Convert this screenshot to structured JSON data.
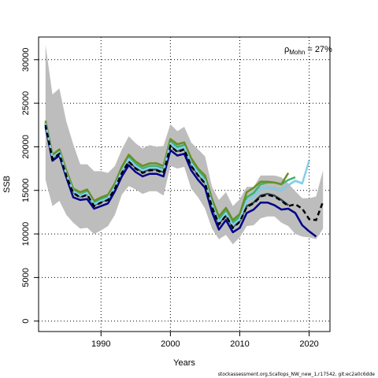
{
  "chart_data": {
    "type": "line",
    "xlabel": "Years",
    "ylabel": "SSB",
    "annotation": {
      "rho_symbol": "ρ",
      "rho_sub": "Mohn",
      "rho_value": " = 27%"
    },
    "footer": "stockassessment.org,Scallops_NW_new_1,r17542, git:ec2a0c6dde",
    "xlim": [
      1981,
      2023
    ],
    "ylim": [
      -1200,
      32600
    ],
    "xticks": [
      1990,
      2000,
      2010,
      2020
    ],
    "yticks": [
      0,
      5000,
      10000,
      15000,
      20000,
      25000,
      30000
    ],
    "grid": true,
    "colors": {
      "band": "#bdbdbd",
      "main": "#000000",
      "peels": [
        "#00008b",
        "#2f4f4f",
        "#3cb371",
        "#6b8e23",
        "#008b8b",
        "#87ceeb"
      ]
    },
    "band": {
      "x": [
        1982,
        1983,
        1984,
        1985,
        1986,
        1987,
        1988,
        1989,
        1990,
        1991,
        1992,
        1993,
        1994,
        1995,
        1996,
        1997,
        1998,
        1999,
        2000,
        2001,
        2002,
        2003,
        2004,
        2005,
        2006,
        2007,
        2008,
        2009,
        2010,
        2011,
        2012,
        2013,
        2014,
        2015,
        2016,
        2017,
        2018,
        2019,
        2020,
        2021,
        2022
      ],
      "upper": [
        31700,
        26000,
        26700,
        22900,
        20300,
        18000,
        18000,
        17200,
        17200,
        17000,
        17800,
        19700,
        21200,
        20400,
        19800,
        20200,
        20000,
        20100,
        22600,
        21800,
        22300,
        20500,
        19700,
        18900,
        15400,
        13900,
        14800,
        13200,
        14000,
        15400,
        15400,
        16700,
        16700,
        16700,
        16500,
        15800,
        14900,
        14100,
        14100,
        14300,
        17300
      ],
      "lower": [
        16200,
        13200,
        13800,
        12200,
        11300,
        10600,
        10700,
        10000,
        10400,
        10900,
        12200,
        14500,
        15500,
        15100,
        14600,
        14900,
        14900,
        14400,
        17800,
        17500,
        17700,
        15200,
        14200,
        12900,
        10600,
        9400,
        9900,
        8800,
        9600,
        10900,
        11000,
        11800,
        12000,
        12000,
        11300,
        10900,
        10000,
        9700,
        9600,
        9400,
        10600
      ]
    },
    "series": [
      {
        "role": "main",
        "x": [
          1982,
          1983,
          1984,
          1985,
          1986,
          1987,
          1988,
          1989,
          1990,
          1991,
          1992,
          1993,
          1994,
          1995,
          1996,
          1997,
          1998,
          1999,
          2000,
          2001,
          2002,
          2003,
          2004,
          2005,
          2006,
          2007,
          2008,
          2009,
          2010,
          2011,
          2012,
          2013,
          2014,
          2015,
          2016,
          2017,
          2018,
          2019,
          2020,
          2021,
          2022
        ],
        "y": [
          22500,
          18600,
          19200,
          16700,
          14700,
          14200,
          14500,
          13200,
          13600,
          13900,
          15200,
          17000,
          18300,
          17500,
          17000,
          17300,
          17300,
          17000,
          20100,
          19400,
          19700,
          17800,
          16700,
          15800,
          13100,
          11100,
          12100,
          10700,
          11400,
          13100,
          13500,
          14300,
          14500,
          14300,
          13800,
          13200,
          13400,
          12900,
          11700,
          11600,
          13700
        ]
      },
      {
        "role": "peel",
        "x": [
          1982,
          1983,
          1984,
          1985,
          1986,
          1987,
          1988,
          1989,
          1990,
          1991,
          1992,
          1993,
          1994,
          1995,
          1996,
          1997,
          1998,
          1999,
          2000,
          2001,
          2002,
          2003,
          2004,
          2005,
          2006,
          2007,
          2008,
          2009,
          2010,
          2011,
          2012,
          2013,
          2014,
          2015,
          2016,
          2017,
          2018,
          2019,
          2020,
          2021
        ],
        "y": [
          22300,
          18400,
          19000,
          16500,
          14200,
          13900,
          14000,
          12900,
          13200,
          13500,
          14900,
          16600,
          17900,
          17100,
          16600,
          16900,
          16900,
          16600,
          19600,
          19000,
          19200,
          17300,
          16200,
          15300,
          12500,
          10500,
          11600,
          10200,
          10700,
          12400,
          12800,
          13600,
          13600,
          13300,
          12800,
          12900,
          12400,
          11000,
          10300,
          9700
        ]
      },
      {
        "role": "peel",
        "x": [
          1982,
          1983,
          1984,
          1985,
          1986,
          1987,
          1988,
          1989,
          1990,
          1991,
          1992,
          1993,
          1994,
          1995,
          1996,
          1997,
          1998,
          1999,
          2000,
          2001,
          2002,
          2003,
          2004,
          2005,
          2006,
          2007,
          2008,
          2009,
          2010,
          2011,
          2012,
          2013,
          2014,
          2015,
          2016,
          2017
        ],
        "y": [
          22600,
          18700,
          19300,
          16800,
          14800,
          14300,
          14600,
          13300,
          13700,
          14000,
          15300,
          17100,
          18400,
          17600,
          17100,
          17400,
          17400,
          17100,
          20200,
          19500,
          19800,
          17900,
          16800,
          15900,
          13200,
          11200,
          12200,
          10800,
          11500,
          13200,
          13600,
          14400,
          14600,
          14400,
          13900,
          13300
        ]
      },
      {
        "role": "peel",
        "x": [
          1982,
          1983,
          1984,
          1985,
          1986,
          1987,
          1988,
          1989,
          1990,
          1991,
          1992,
          1993,
          1994,
          1995,
          1996,
          1997,
          1998,
          1999,
          2000,
          2001,
          2002,
          2003,
          2004,
          2005,
          2006,
          2007,
          2008,
          2009,
          2010,
          2011,
          2012,
          2013,
          2014,
          2015,
          2016,
          2017,
          2018
        ],
        "y": [
          22800,
          18900,
          19500,
          17100,
          15000,
          14500,
          14900,
          13600,
          14000,
          14300,
          15600,
          17400,
          18800,
          18000,
          17500,
          17800,
          17800,
          17500,
          20600,
          20000,
          20200,
          18400,
          17200,
          16400,
          13700,
          11700,
          12700,
          11300,
          12000,
          14200,
          14700,
          15700,
          15900,
          15900,
          15700,
          16200,
          16500
        ]
      },
      {
        "role": "peel",
        "x": [
          1982,
          1983,
          1984,
          1985,
          1986,
          1987,
          1988,
          1989,
          1990,
          1991,
          1992,
          1993,
          1994,
          1995,
          1996,
          1997,
          1998,
          1999,
          2000,
          2001,
          2002,
          2003,
          2004,
          2005,
          2006,
          2007,
          2008,
          2009,
          2010,
          2011,
          2012,
          2013,
          2014,
          2015,
          2016,
          2017
        ],
        "y": [
          23000,
          19100,
          19700,
          17300,
          15200,
          14800,
          15100,
          13800,
          14200,
          14500,
          15800,
          17700,
          19100,
          18300,
          17800,
          18100,
          18100,
          17800,
          20900,
          20300,
          20500,
          18700,
          17500,
          16700,
          14000,
          12000,
          13000,
          11600,
          12300,
          14800,
          15300,
          16000,
          16000,
          15900,
          15700,
          17000
        ]
      },
      {
        "role": "peel",
        "x": [
          1982,
          1983,
          1984,
          1985,
          1986,
          1987,
          1988,
          1989,
          1990,
          1991,
          1992,
          1993,
          1994,
          1995,
          1996,
          1997,
          1998,
          1999,
          2000,
          2001,
          2002,
          2003,
          2004,
          2005,
          2006,
          2007,
          2008,
          2009,
          2010,
          2011,
          2012,
          2013,
          2014,
          2015,
          2016,
          2017,
          2018,
          2019
        ],
        "y": [
          22700,
          18800,
          19400,
          16900,
          14900,
          14400,
          14700,
          13400,
          13800,
          14100,
          15400,
          17200,
          18600,
          17800,
          17300,
          17600,
          17600,
          17300,
          20400,
          19700,
          20000,
          18100,
          17000,
          16100,
          13400,
          11400,
          12400,
          11000,
          11700,
          13800,
          14300,
          15200,
          15300,
          15200,
          15000,
          15600,
          16100,
          15800
        ]
      },
      {
        "role": "peel",
        "x": [
          1982,
          1983,
          1984,
          1985,
          1986,
          1987,
          1988,
          1989,
          1990,
          1991,
          1992,
          1993,
          1994,
          1995,
          1996,
          1997,
          1998,
          1999,
          2000,
          2001,
          2002,
          2003,
          2004,
          2005,
          2006,
          2007,
          2008,
          2009,
          2010,
          2011,
          2012,
          2013,
          2014,
          2015,
          2016,
          2017,
          2018,
          2019,
          2020
        ],
        "y": [
          22700,
          18800,
          19400,
          16900,
          14900,
          14400,
          14700,
          13400,
          13800,
          14100,
          15400,
          17200,
          18600,
          17800,
          17300,
          17600,
          17600,
          17300,
          20400,
          19700,
          20000,
          18100,
          17000,
          16100,
          13400,
          11400,
          12400,
          11000,
          11700,
          13800,
          14300,
          15200,
          15300,
          15200,
          15000,
          15600,
          16100,
          15800,
          18400
        ]
      }
    ]
  }
}
